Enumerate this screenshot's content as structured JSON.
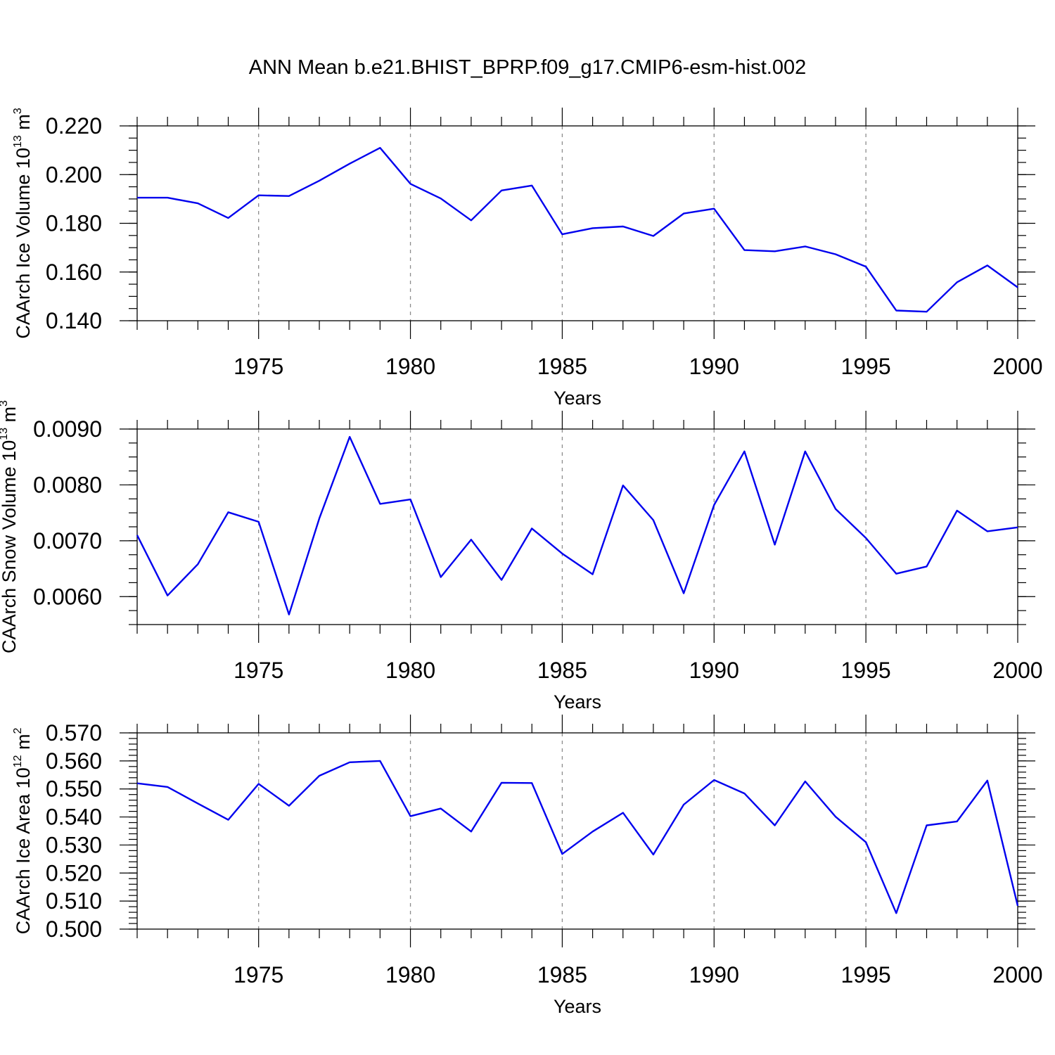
{
  "figure": {
    "title": "ANN Mean b.e21.BHIST_BPRP.f09_g17.CMIP6-esm-hist.002",
    "line_color": "#0000ee"
  },
  "chart_data": [
    {
      "type": "line",
      "title": "",
      "xlabel": "Years",
      "ylabel": {
        "text": "CAArch Ice Volume 10",
        "sup": "13",
        "unit": " m",
        "unit_sup": "3"
      },
      "xlim": [
        1971,
        2000
      ],
      "ylim": [
        0.14,
        0.22
      ],
      "xticks": [
        1975,
        1980,
        1985,
        1990,
        1995,
        2000
      ],
      "yticks": [
        "0.140",
        "0.160",
        "0.180",
        "0.200",
        "0.220"
      ],
      "grid": "dashed vertical at x ticks",
      "x": [
        1971,
        1972,
        1973,
        1974,
        1975,
        1976,
        1977,
        1978,
        1979,
        1980,
        1981,
        1982,
        1983,
        1984,
        1985,
        1986,
        1987,
        1988,
        1989,
        1990,
        1991,
        1992,
        1993,
        1994,
        1995,
        1996,
        1997,
        1998,
        1999,
        2000
      ],
      "values": [
        0.1905,
        0.1905,
        0.1882,
        0.1822,
        0.1915,
        0.1912,
        0.1975,
        0.2045,
        0.211,
        0.1962,
        0.1902,
        0.1812,
        0.1935,
        0.1955,
        0.1755,
        0.178,
        0.1787,
        0.1748,
        0.184,
        0.186,
        0.169,
        0.1685,
        0.1705,
        0.1673,
        0.1622,
        0.1442,
        0.1437,
        0.1558,
        0.1627,
        0.1537
      ]
    },
    {
      "type": "line",
      "title": "",
      "xlabel": "Years",
      "ylabel": {
        "text": "CAArch Snow Volume 10",
        "sup": "13",
        "unit": " m",
        "unit_sup": "3"
      },
      "xlim": [
        1971,
        2000
      ],
      "ylim": [
        0.0055,
        0.009
      ],
      "xticks": [
        1975,
        1980,
        1985,
        1990,
        1995,
        2000
      ],
      "yticks": [
        "0.0060",
        "0.0070",
        "0.0080",
        "0.0090"
      ],
      "grid": "dashed vertical at x ticks",
      "x": [
        1971,
        1972,
        1973,
        1974,
        1975,
        1976,
        1977,
        1978,
        1979,
        1980,
        1981,
        1982,
        1983,
        1984,
        1985,
        1986,
        1987,
        1988,
        1989,
        1990,
        1991,
        1992,
        1993,
        1994,
        1995,
        1996,
        1997,
        1998,
        1999,
        2000
      ],
      "values": [
        0.0071,
        0.00602,
        0.00658,
        0.00751,
        0.00734,
        0.00568,
        0.0074,
        0.00886,
        0.00766,
        0.00774,
        0.00635,
        0.00702,
        0.0063,
        0.00722,
        0.00677,
        0.0064,
        0.00799,
        0.00737,
        0.00606,
        0.00764,
        0.0086,
        0.00693,
        0.0086,
        0.00757,
        0.00705,
        0.00641,
        0.00654,
        0.00754,
        0.00717,
        0.00724
      ]
    },
    {
      "type": "line",
      "title": "",
      "xlabel": "Years",
      "ylabel": {
        "text": "CAArch Ice Area 10",
        "sup": "12",
        "unit": " m",
        "unit_sup": "2"
      },
      "xlim": [
        1971,
        2000
      ],
      "ylim": [
        0.5,
        0.57
      ],
      "xticks": [
        1975,
        1980,
        1985,
        1990,
        1995,
        2000
      ],
      "yticks": [
        "0.500",
        "0.510",
        "0.520",
        "0.530",
        "0.540",
        "0.550",
        "0.560",
        "0.570"
      ],
      "grid": "dashed vertical at x ticks",
      "x": [
        1971,
        1972,
        1973,
        1974,
        1975,
        1976,
        1977,
        1978,
        1979,
        1980,
        1981,
        1982,
        1983,
        1984,
        1985,
        1986,
        1987,
        1988,
        1989,
        1990,
        1991,
        1992,
        1993,
        1994,
        1995,
        1996,
        1997,
        1998,
        1999,
        2000
      ],
      "values": [
        0.552,
        0.5507,
        0.5448,
        0.539,
        0.5518,
        0.544,
        0.5547,
        0.5595,
        0.56,
        0.5403,
        0.543,
        0.5348,
        0.5522,
        0.5521,
        0.5268,
        0.5348,
        0.5415,
        0.5266,
        0.5444,
        0.5532,
        0.5484,
        0.537,
        0.5527,
        0.5401,
        0.531,
        0.5057,
        0.537,
        0.5384,
        0.553,
        0.5083
      ]
    }
  ]
}
